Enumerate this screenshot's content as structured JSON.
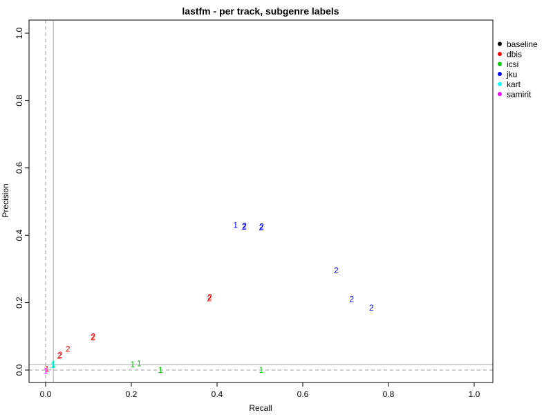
{
  "chart_data": {
    "type": "scatter",
    "title": "lastfm - per track, subgenre labels",
    "xlabel": "Recall",
    "ylabel": "Precision",
    "xlim": [
      0,
      1
    ],
    "ylim": [
      0,
      1
    ],
    "xticks": [
      "0.0",
      "0.2",
      "0.4",
      "0.6",
      "0.8",
      "1.0"
    ],
    "yticks": [
      "0.0",
      "0.2",
      "0.4",
      "0.6",
      "0.8",
      "1.0"
    ],
    "grid": false,
    "legend_position": "right",
    "reference_lines": {
      "dashed_x": 0.0,
      "dashed_y": 0.0,
      "solid_x": 0.018,
      "solid_y": 0.016
    },
    "series": [
      {
        "name": "baseline",
        "color": "#000000",
        "points": []
      },
      {
        "name": "dbis",
        "color": "#ff0000",
        "points": [
          {
            "x": 0.003,
            "y": 0.003,
            "label": "1"
          },
          {
            "x": 0.032,
            "y": 0.042,
            "label": "2"
          },
          {
            "x": 0.034,
            "y": 0.045,
            "label": "2"
          },
          {
            "x": 0.052,
            "y": 0.063,
            "label": "2"
          },
          {
            "x": 0.11,
            "y": 0.097,
            "label": "2"
          },
          {
            "x": 0.111,
            "y": 0.1,
            "label": "2"
          },
          {
            "x": 0.382,
            "y": 0.213,
            "label": "2"
          },
          {
            "x": 0.383,
            "y": 0.217,
            "label": "2"
          }
        ]
      },
      {
        "name": "icsi",
        "color": "#00cd00",
        "points": [
          {
            "x": 0.203,
            "y": 0.016,
            "label": "1"
          },
          {
            "x": 0.218,
            "y": 0.019,
            "label": "1"
          },
          {
            "x": 0.268,
            "y": 0.0,
            "label": "1"
          },
          {
            "x": 0.503,
            "y": 0.0,
            "label": "1"
          },
          {
            "x": 0.018,
            "y": 0.016,
            "label": "1"
          }
        ]
      },
      {
        "name": "jku",
        "color": "#0000ff",
        "points": [
          {
            "x": 0.443,
            "y": 0.43,
            "label": "1"
          },
          {
            "x": 0.463,
            "y": 0.425,
            "label": "2"
          },
          {
            "x": 0.464,
            "y": 0.428,
            "label": "2"
          },
          {
            "x": 0.503,
            "y": 0.423,
            "label": "2"
          },
          {
            "x": 0.504,
            "y": 0.426,
            "label": "2"
          },
          {
            "x": 0.678,
            "y": 0.296,
            "label": "2"
          },
          {
            "x": 0.714,
            "y": 0.21,
            "label": "2"
          },
          {
            "x": 0.76,
            "y": 0.185,
            "label": "2"
          }
        ]
      },
      {
        "name": "kart",
        "color": "#00ffff",
        "points": [
          {
            "x": 0.016,
            "y": 0.014,
            "label": "1"
          },
          {
            "x": 0.019,
            "y": 0.019,
            "label": "1"
          }
        ]
      },
      {
        "name": "samirit",
        "color": "#ff00ff",
        "points": [
          {
            "x": 0.0,
            "y": -0.003,
            "label": "1"
          }
        ]
      }
    ]
  }
}
